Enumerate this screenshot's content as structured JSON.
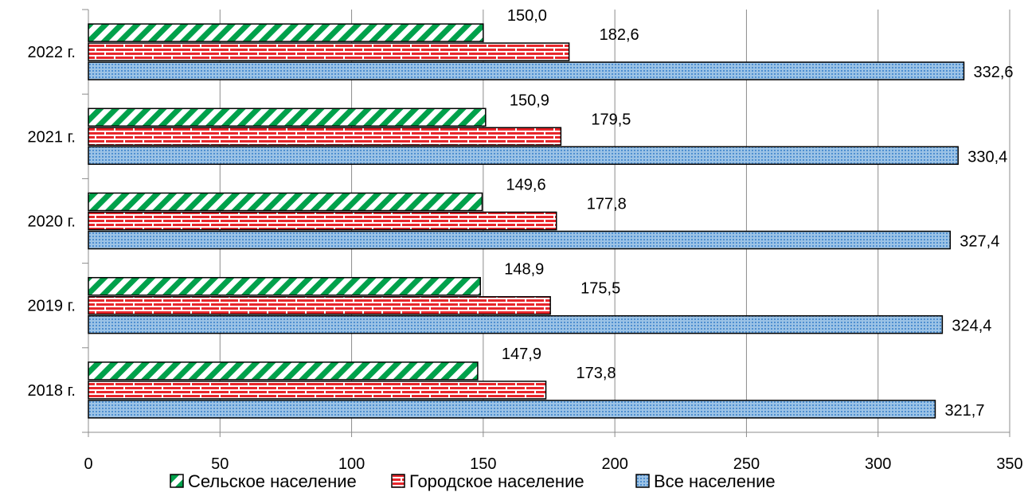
{
  "chart_data": {
    "type": "bar",
    "orientation": "horizontal",
    "categories": [
      "2022 г.",
      "2021 г.",
      "2020 г.",
      "2019 г.",
      "2018 г."
    ],
    "series": [
      {
        "name": "Сельское население",
        "values": [
          150.0,
          150.9,
          149.6,
          148.9,
          147.9
        ],
        "labels": [
          "150,0",
          "150,9",
          "149,6",
          "148,9",
          "147,9"
        ],
        "color": "#00a14b",
        "pattern": "diagonal-stripes"
      },
      {
        "name": "Городское население",
        "values": [
          182.6,
          179.5,
          177.8,
          175.5,
          173.8
        ],
        "labels": [
          "182,6",
          "179,5",
          "177,8",
          "175,5",
          "173,8"
        ],
        "color": "#e8262b",
        "pattern": "brick"
      },
      {
        "name": "Все население",
        "values": [
          332.6,
          330.4,
          327.4,
          324.4,
          321.7
        ],
        "labels": [
          "332,6",
          "330,4",
          "327,4",
          "324,4",
          "321,7"
        ],
        "color": "#5b9bd5",
        "pattern": "dotted-grid"
      }
    ],
    "xlim": [
      0,
      350
    ],
    "x_ticks": [
      "0",
      "50",
      "100",
      "150",
      "200",
      "250",
      "300",
      "350"
    ],
    "grid": true,
    "legend_position": "bottom"
  }
}
